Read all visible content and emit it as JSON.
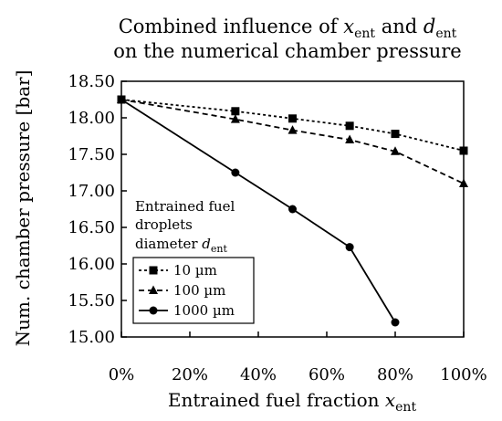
{
  "chart_data": {
    "type": "line",
    "title": {
      "line1_prefix": "Combined influence of ",
      "line1_var1": "x",
      "line1_sub1": "ent",
      "line1_mid": " and ",
      "line1_var2": "d",
      "line1_sub2": "ent",
      "line2": "on the numerical chamber pressure"
    },
    "xlabel": {
      "text": "Entrained fuel fraction ",
      "var": "x",
      "sub": "ent"
    },
    "ylabel": "Num. chamber pressure [bar]",
    "xlim": [
      0,
      100
    ],
    "ylim": [
      15.0,
      18.5
    ],
    "x_ticks": [
      0,
      20,
      40,
      60,
      80,
      100
    ],
    "x_tick_labels": [
      "0%",
      "20%",
      "40%",
      "60%",
      "80%",
      "100%"
    ],
    "y_ticks": [
      15.0,
      15.5,
      16.0,
      16.5,
      17.0,
      17.5,
      18.0,
      18.5
    ],
    "y_tick_labels": [
      "15.00",
      "15.50",
      "16.00",
      "16.50",
      "17.00",
      "17.50",
      "18.00",
      "18.50"
    ],
    "grid": false,
    "legend": {
      "placement": "bottom-left",
      "title_lines": [
        "Entrained fuel",
        "droplets"
      ],
      "title_last_prefix": "diameter ",
      "title_var": "d",
      "title_sub": "ent"
    },
    "series": [
      {
        "name": "10 µm",
        "marker": "square",
        "line_style": "dotted",
        "color": "#000000",
        "x": [
          0,
          33.3,
          50,
          66.7,
          80,
          100
        ],
        "y": [
          18.25,
          18.09,
          17.99,
          17.89,
          17.78,
          17.55
        ]
      },
      {
        "name": "100 µm",
        "marker": "triangle",
        "line_style": "dashed",
        "color": "#000000",
        "x": [
          0,
          33.3,
          50,
          66.7,
          80,
          100
        ],
        "y": [
          18.25,
          17.98,
          17.83,
          17.7,
          17.54,
          17.1
        ]
      },
      {
        "name": "1000 µm",
        "marker": "circle",
        "line_style": "solid",
        "color": "#000000",
        "x": [
          0,
          33.3,
          50,
          66.7,
          80
        ],
        "y": [
          18.25,
          17.25,
          16.75,
          16.23,
          15.2
        ]
      }
    ]
  }
}
